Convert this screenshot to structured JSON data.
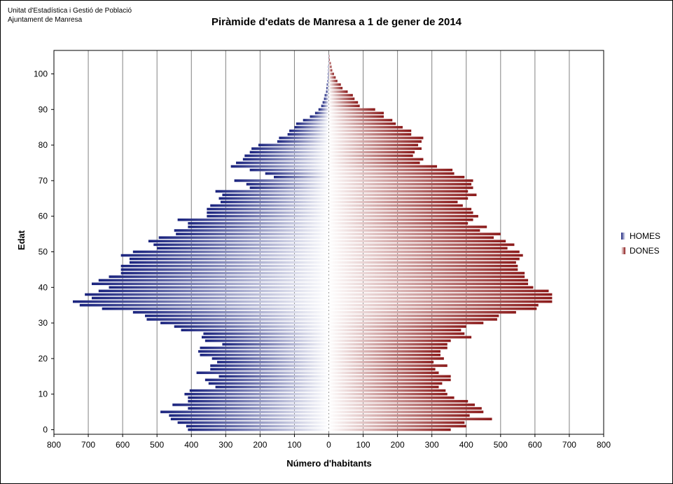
{
  "header": {
    "org_line1": "Unitat d'Estadística i Gestió de Població",
    "org_line2": "Ajuntament de Manresa"
  },
  "colors": {
    "homes_dark": "#1a237e",
    "dones_dark": "#8b1a1a",
    "center": "#ffffff",
    "grid": "#808080",
    "plot_bg": "#ffffff"
  },
  "chart_data": {
    "type": "bar",
    "orientation": "horizontal-pyramid",
    "title": "Piràmide d'edats de Manresa a 1 de gener de 2014",
    "xlabel": "Número d'habitants",
    "ylabel": "Edat",
    "xlim": [
      -800,
      800
    ],
    "ylim": [
      0,
      106
    ],
    "x_ticks": [
      "800",
      "700",
      "600",
      "500",
      "400",
      "300",
      "200",
      "100",
      "0",
      "100",
      "200",
      "300",
      "400",
      "500",
      "600",
      "700",
      "800"
    ],
    "y_ticks": [
      "0",
      "10",
      "20",
      "30",
      "40",
      "50",
      "60",
      "70",
      "80",
      "90",
      "100"
    ],
    "grid": true,
    "legend_position": "right",
    "ages": [
      0,
      1,
      2,
      3,
      4,
      5,
      6,
      7,
      8,
      9,
      10,
      11,
      12,
      13,
      14,
      15,
      16,
      17,
      18,
      19,
      20,
      21,
      22,
      23,
      24,
      25,
      26,
      27,
      28,
      29,
      30,
      31,
      32,
      33,
      34,
      35,
      36,
      37,
      38,
      39,
      40,
      41,
      42,
      43,
      44,
      45,
      46,
      47,
      48,
      49,
      50,
      51,
      52,
      53,
      54,
      55,
      56,
      57,
      58,
      59,
      60,
      61,
      62,
      63,
      64,
      65,
      66,
      67,
      68,
      69,
      70,
      71,
      72,
      73,
      74,
      75,
      76,
      77,
      78,
      79,
      80,
      81,
      82,
      83,
      84,
      85,
      86,
      87,
      88,
      89,
      90,
      91,
      92,
      93,
      94,
      95,
      96,
      97,
      98,
      99,
      100,
      101,
      102,
      103,
      104,
      105
    ],
    "series": [
      {
        "name": "HOMES",
        "values": [
          410,
          415,
          440,
          460,
          465,
          490,
          410,
          455,
          410,
          410,
          420,
          405,
          330,
          350,
          360,
          320,
          385,
          345,
          345,
          325,
          340,
          375,
          380,
          375,
          310,
          360,
          370,
          365,
          430,
          450,
          490,
          530,
          535,
          570,
          660,
          725,
          745,
          690,
          710,
          670,
          640,
          690,
          670,
          640,
          605,
          605,
          605,
          580,
          580,
          605,
          570,
          500,
          510,
          525,
          495,
          445,
          450,
          410,
          410,
          440,
          355,
          355,
          355,
          345,
          315,
          320,
          310,
          330,
          230,
          240,
          275,
          160,
          185,
          230,
          285,
          270,
          250,
          245,
          230,
          225,
          205,
          150,
          145,
          120,
          115,
          100,
          95,
          75,
          55,
          40,
          30,
          22,
          18,
          14,
          12,
          8,
          7,
          6,
          4,
          3,
          3,
          2,
          2,
          1,
          1,
          1
        ]
      },
      {
        "name": "DONES",
        "values": [
          355,
          400,
          395,
          475,
          410,
          450,
          445,
          425,
          405,
          365,
          345,
          340,
          320,
          330,
          355,
          355,
          320,
          310,
          345,
          305,
          335,
          325,
          325,
          345,
          345,
          355,
          415,
          395,
          385,
          400,
          450,
          490,
          495,
          545,
          605,
          610,
          650,
          650,
          650,
          640,
          595,
          580,
          580,
          570,
          570,
          550,
          550,
          545,
          555,
          565,
          555,
          520,
          540,
          515,
          480,
          500,
          440,
          460,
          405,
          420,
          435,
          420,
          415,
          390,
          375,
          405,
          430,
          405,
          420,
          415,
          420,
          395,
          365,
          360,
          315,
          265,
          275,
          245,
          250,
          270,
          260,
          270,
          275,
          240,
          240,
          215,
          195,
          185,
          160,
          160,
          135,
          90,
          85,
          75,
          70,
          55,
          40,
          35,
          25,
          20,
          15,
          10,
          8,
          6,
          3,
          2
        ]
      }
    ]
  }
}
